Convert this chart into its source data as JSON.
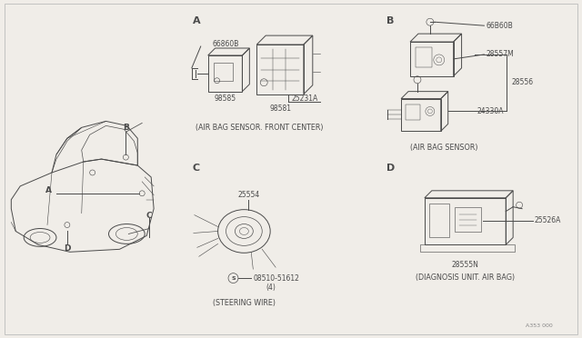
{
  "bg_color": "#f0ede8",
  "line_color": "#4a4a4a",
  "section_A_label": "A",
  "section_B_label": "B",
  "section_C_label": "C",
  "section_D_label": "D",
  "section_A_caption": "(AIR BAG SENSOR. FRONT CENTER)",
  "section_B_caption": "(AIR BAG SENSOR)",
  "section_C_caption": "(STEERING WIRE)",
  "section_D_caption": "(DIAGNOSIS UNIT. AIR BAG)",
  "part_ids_A": [
    "66860B",
    "25231A",
    "98585",
    "98581"
  ],
  "part_ids_B": [
    "66B60B",
    "28557M",
    "24330A",
    "28556"
  ],
  "part_ids_C": [
    "25554",
    "08510-51612",
    "(4)"
  ],
  "part_ids_D": [
    "25526A",
    "28555N"
  ],
  "watermark": "A353 000",
  "border_color": "#cccccc",
  "lw": 0.7,
  "fs": 5.5
}
